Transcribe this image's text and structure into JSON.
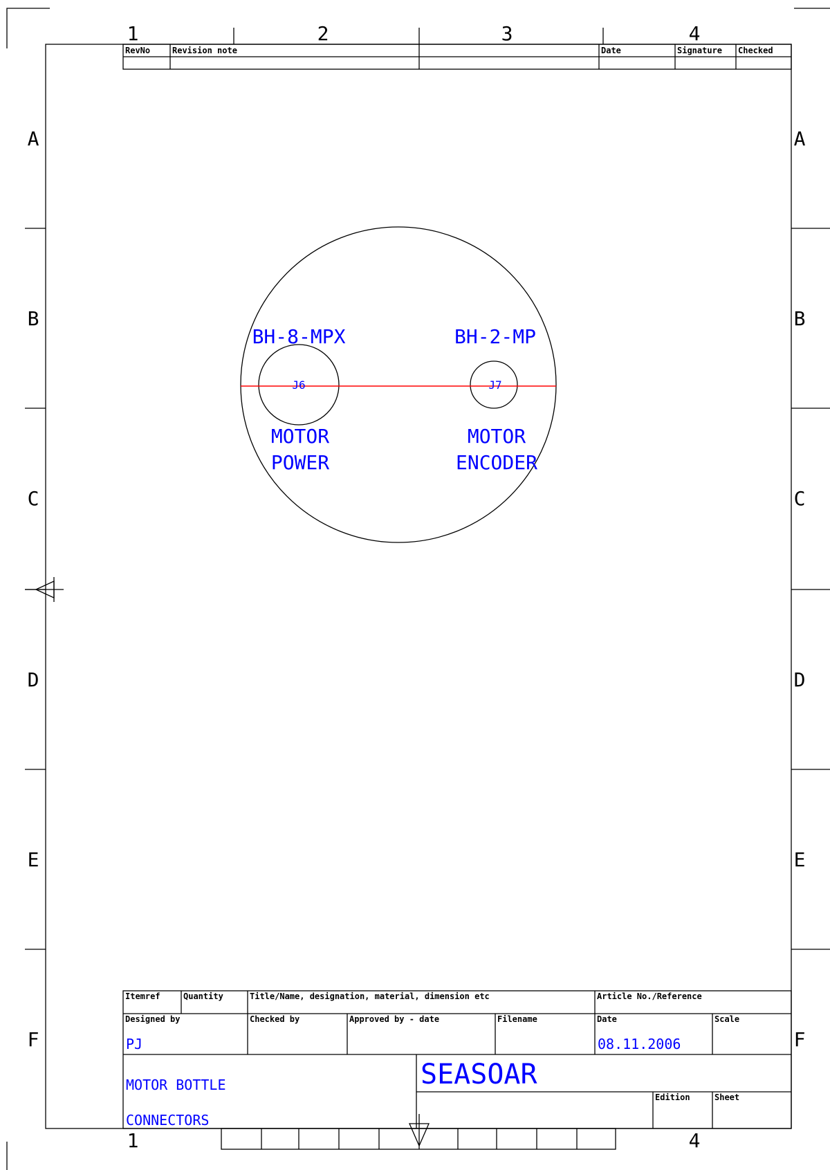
{
  "frame": {
    "columns": [
      "1",
      "2",
      "3",
      "4"
    ],
    "rows": [
      "A",
      "B",
      "C",
      "D",
      "E",
      "F"
    ]
  },
  "revision_block": {
    "rev_no": "RevNo",
    "revision_note": "Revision note",
    "date": "Date",
    "signature": "Signature",
    "checked": "Checked"
  },
  "drawing": {
    "connectors": [
      {
        "ref": "J6",
        "type": "BH-8-MPX",
        "function_line1": "MOTOR",
        "function_line2": "POWER"
      },
      {
        "ref": "J7",
        "type": "BH-2-MP",
        "function_line1": "MOTOR",
        "function_line2": "ENCODER"
      }
    ],
    "colors": {
      "line": "#000000",
      "text": "#0000ff",
      "centerline": "#ff0000"
    }
  },
  "title_block": {
    "headers": {
      "itemref": "Itemref",
      "quantity": "Quantity",
      "title_name": "Title/Name, designation, material, dimension etc",
      "article_no": "Article No./Reference",
      "designed_by": "Designed by",
      "checked_by": "Checked by",
      "approved_by": "Approved by - date",
      "filename": "Filename",
      "date": "Date",
      "scale": "Scale",
      "edition": "Edition",
      "sheet": "Sheet"
    },
    "values": {
      "designed_by": "PJ",
      "date": "08.11.2006",
      "title_line1": "MOTOR BOTTLE",
      "title_line2": "CONNECTORS",
      "company": "SEASOAR"
    }
  }
}
